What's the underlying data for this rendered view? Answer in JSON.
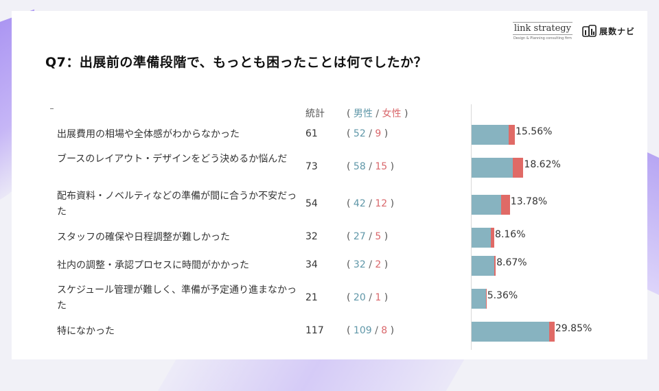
{
  "question": "Q7：出展前の準備段階で、もっとも困ったことは何でしたか？",
  "brands": {
    "link_strategy": "link strategy",
    "link_strategy_sub": "Design & Planning consulting firm",
    "navi": "展数ナビ"
  },
  "headers": {
    "total": "統計",
    "open": "(",
    "male": "男性",
    "slash": "/",
    "female": "女性",
    "close": ")"
  },
  "colors": {
    "male": "#87b3c0",
    "female": "#e06a66"
  },
  "chart_data": {
    "type": "bar",
    "orientation": "horizontal",
    "stacked": true,
    "categories": [
      "出展費用の相場や全体感がわからなかった",
      "ブースのレイアウト・デザインをどう決めるか悩んだ",
      "配布資料・ノベルティなどの準備が間に合うか不安だった",
      "スタッフの確保や日程調整が難しかった",
      "社内の調整・承認プロセスに時間がかかった",
      "スケジュール管理が難しく、準備が予定通り進まなかった",
      "特になかった"
    ],
    "totals": [
      61,
      73,
      54,
      32,
      34,
      21,
      117
    ],
    "series": [
      {
        "name": "男性",
        "values": [
          52,
          58,
          42,
          27,
          32,
          20,
          109
        ]
      },
      {
        "name": "女性",
        "values": [
          9,
          15,
          12,
          5,
          2,
          1,
          8
        ]
      }
    ],
    "percent_labels": [
      "15.56%",
      "18.62%",
      "13.78%",
      "8.16%",
      "8.67%",
      "5.36%",
      "29.85%"
    ],
    "percent_values": [
      15.56,
      18.62,
      13.78,
      8.16,
      8.67,
      5.36,
      29.85
    ]
  }
}
